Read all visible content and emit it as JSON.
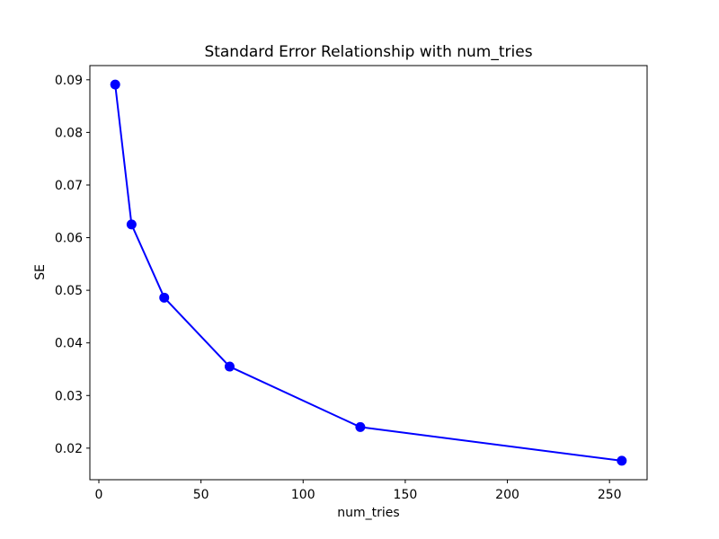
{
  "chart_data": {
    "type": "line",
    "title": "Standard Error Relationship with num_tries",
    "xlabel": "num_tries",
    "ylabel": "SE",
    "x": [
      8,
      16,
      32,
      64,
      128,
      256
    ],
    "y": [
      0.0891,
      0.0625,
      0.0486,
      0.0355,
      0.024,
      0.0176
    ],
    "line_color": "#0000ff",
    "marker": "circle",
    "marker_color": "#0000ff",
    "axis_color": "#000000",
    "background_color": "#ffffff",
    "xlim": [
      -4.4,
      268.4
    ],
    "ylim": [
      0.014,
      0.0927
    ],
    "x_ticks": [
      0,
      50,
      100,
      150,
      200,
      250
    ],
    "x_tick_labels": [
      "0",
      "50",
      "100",
      "150",
      "200",
      "250"
    ],
    "y_ticks": [
      0.02,
      0.03,
      0.04,
      0.05,
      0.06,
      0.07,
      0.08,
      0.09
    ],
    "y_tick_labels": [
      "0.02",
      "0.03",
      "0.04",
      "0.05",
      "0.06",
      "0.07",
      "0.08",
      "0.09"
    ],
    "grid": false,
    "legend": "none"
  }
}
